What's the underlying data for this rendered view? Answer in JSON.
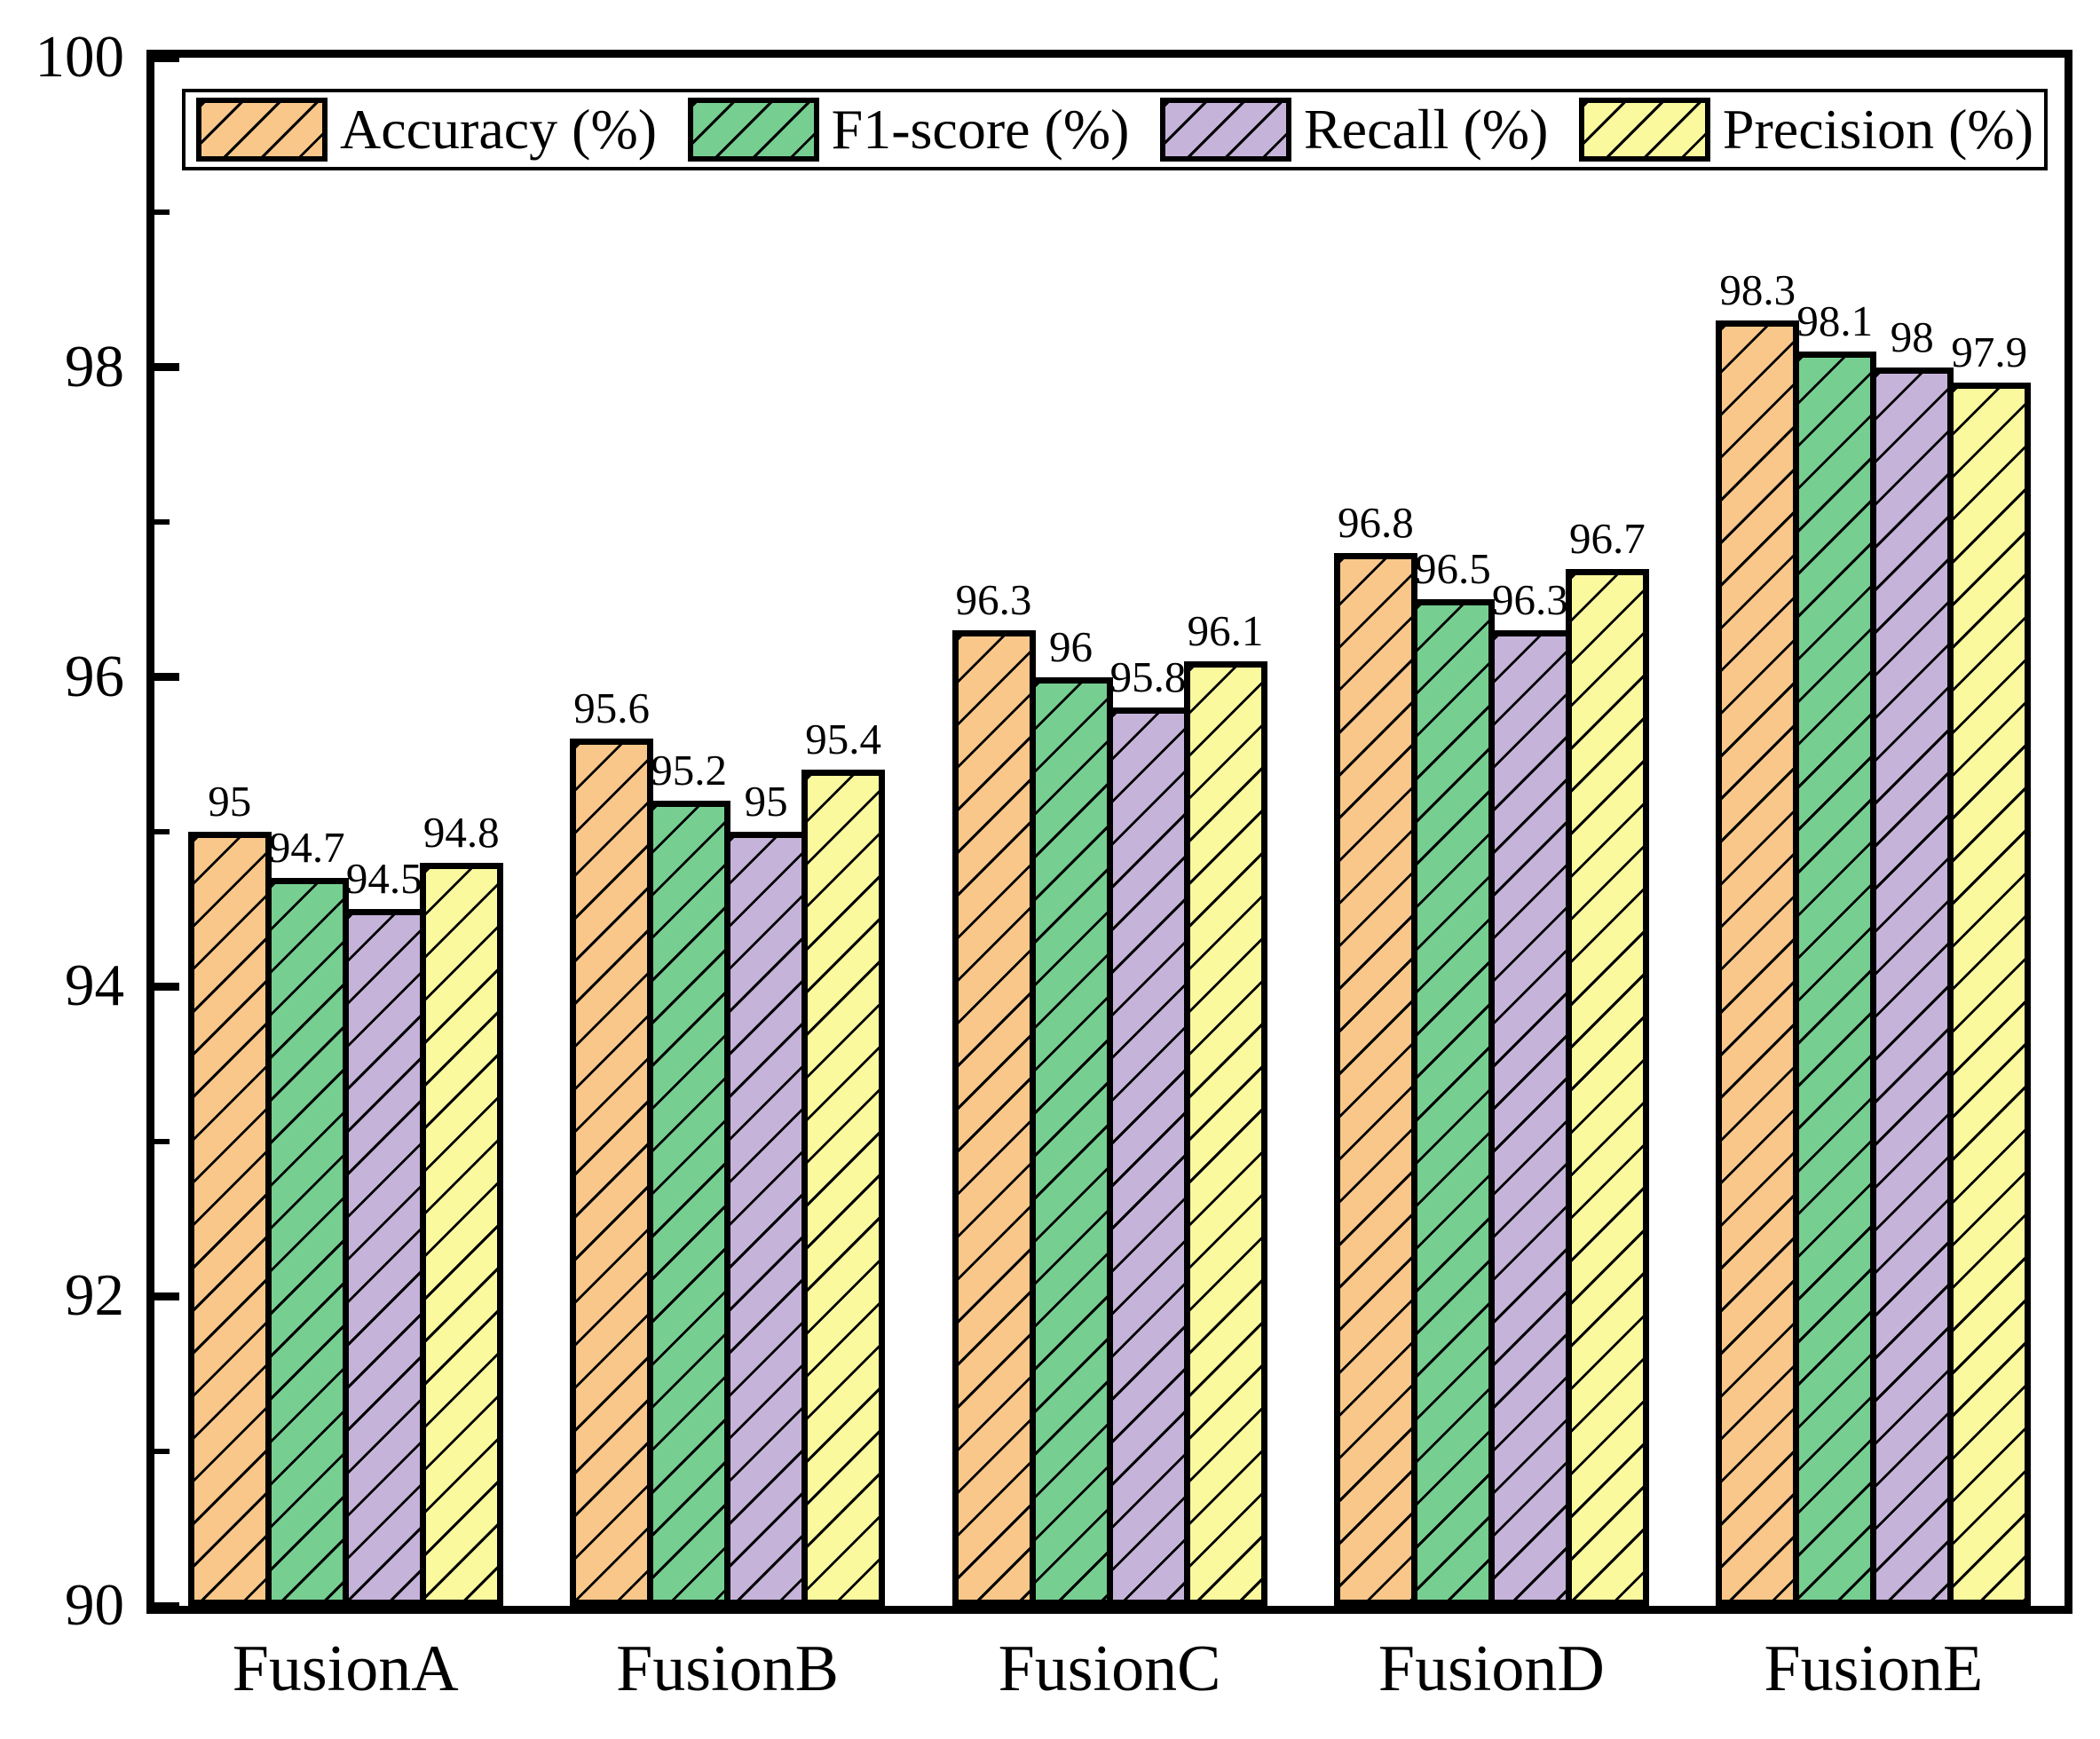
{
  "chart_data": {
    "type": "bar",
    "title": "",
    "xlabel": "",
    "ylabel": "",
    "categories": [
      "FusionA",
      "FusionB",
      "FusionC",
      "FusionD",
      "FusionE"
    ],
    "series": [
      {
        "name": "Accuracy (%)",
        "color": "#F9C78A",
        "values": [
          95,
          95.6,
          96.3,
          96.8,
          98.3
        ]
      },
      {
        "name": "F1-score (%)",
        "color": "#77CE91",
        "values": [
          94.7,
          95.2,
          96,
          96.5,
          98.1
        ]
      },
      {
        "name": "Recall (%)",
        "color": "#C6B3D9",
        "values": [
          94.5,
          95,
          95.8,
          96.3,
          98
        ]
      },
      {
        "name": "Precision (%)",
        "color": "#FBF99E",
        "values": [
          94.8,
          95.4,
          96.1,
          96.7,
          97.9
        ]
      }
    ],
    "ylim": [
      90,
      100
    ],
    "yticks_major": [
      90,
      92,
      94,
      96,
      98,
      100
    ],
    "yticks_minor": [
      91,
      93,
      95,
      97,
      99
    ],
    "bar_labels_shown": true,
    "hatch_pattern": "/",
    "grid": false,
    "legend_position": "top-inside",
    "tick_direction": "in",
    "bar_edge_color": "#000000",
    "text_color": "#000000"
  }
}
